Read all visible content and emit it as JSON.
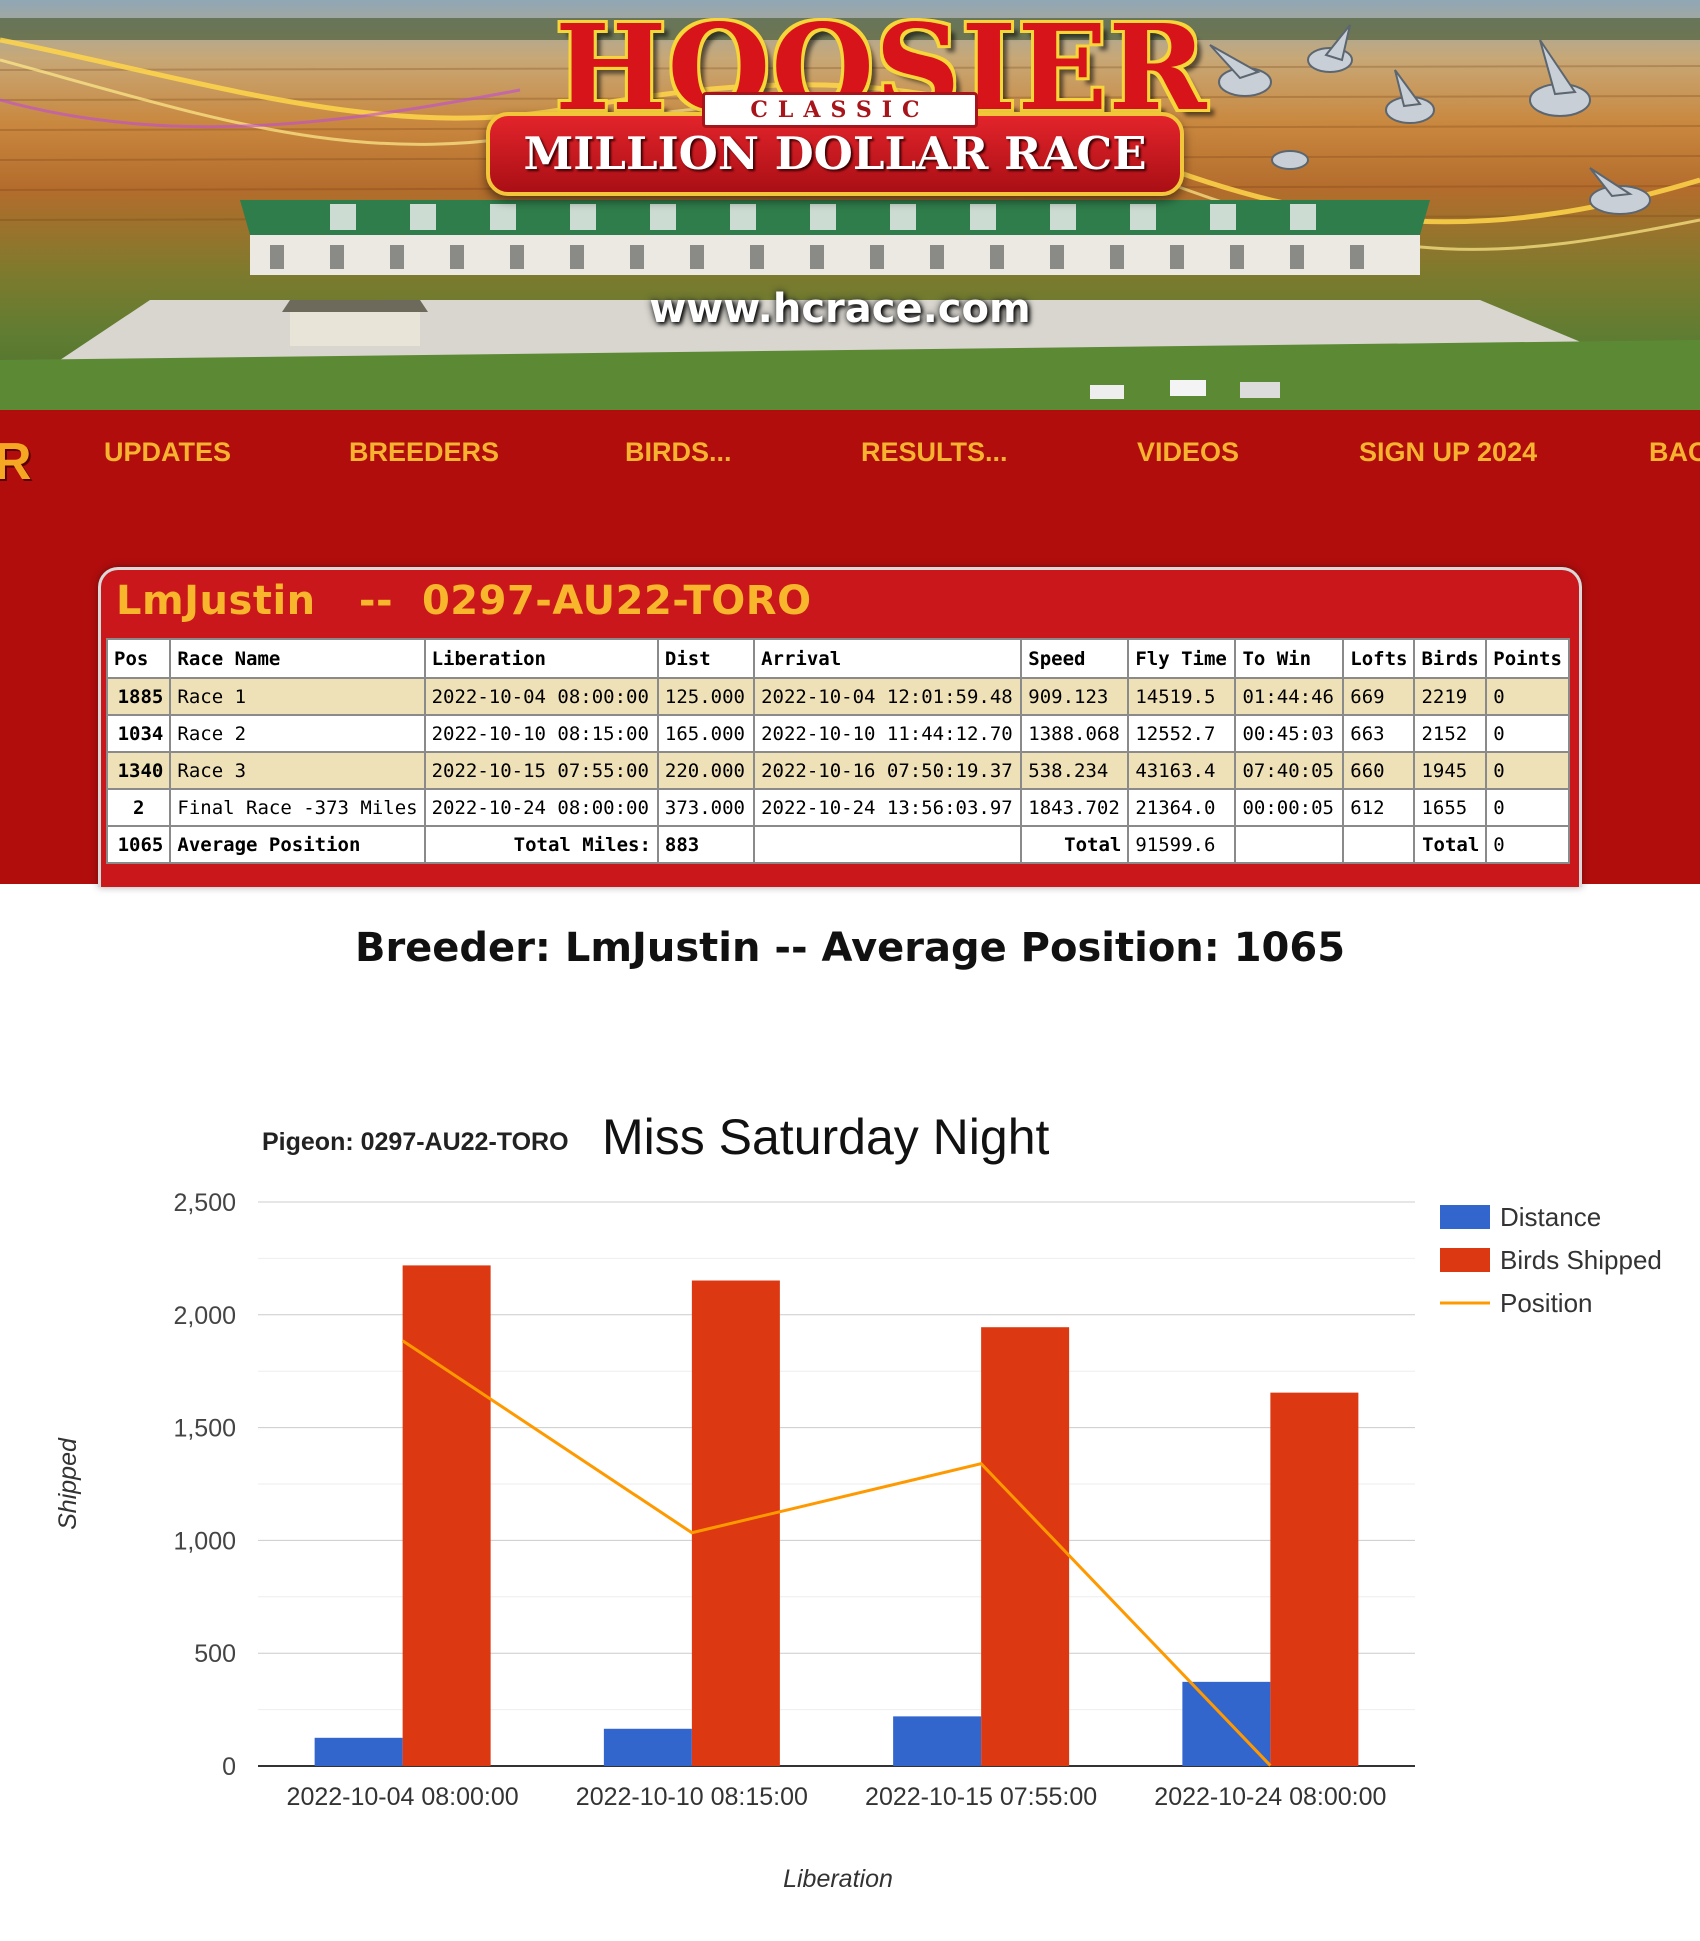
{
  "banner": {
    "logo_word": "HOOSIER",
    "logo_classic": "CLASSIC",
    "logo_tagline": "MILLION DOLLAR RACE",
    "url": "www.hcrace.com"
  },
  "nav": {
    "cut_left": "R",
    "items": [
      "UPDATES",
      "BREEDERS",
      "BIRDS...",
      "RESULTS...",
      "VIDEOS",
      "SIGN UP 2024",
      "BAC"
    ]
  },
  "results": {
    "title": "LmJustin   --  0297-AU22-TORO",
    "columns": [
      "Pos",
      "Race Name",
      "Liberation",
      "Dist",
      "Arrival",
      "Speed",
      "Fly Time",
      "To Win",
      "Lofts",
      "Birds",
      "Points"
    ],
    "rows": [
      [
        "1885",
        "Race 1",
        "2022-10-04 08:00:00",
        "125.000",
        "2022-10-04 12:01:59.48",
        "909.123",
        "14519.5",
        "01:44:46",
        "669",
        "2219",
        "0"
      ],
      [
        "1034",
        "Race 2",
        "2022-10-10 08:15:00",
        "165.000",
        "2022-10-10 11:44:12.70",
        "1388.068",
        "12552.7",
        "00:45:03",
        "663",
        "2152",
        "0"
      ],
      [
        "1340",
        "Race 3",
        "2022-10-15 07:55:00",
        "220.000",
        "2022-10-16 07:50:19.37",
        "538.234",
        "43163.4",
        "07:40:05",
        "660",
        "1945",
        "0"
      ],
      [
        "2",
        "Final Race -373 Miles",
        "2022-10-24 08:00:00",
        "373.000",
        "2022-10-24 13:56:03.97",
        "1843.702",
        "21364.0",
        "00:00:05",
        "612",
        "1655",
        "0"
      ]
    ],
    "summary": {
      "pos": "1065",
      "label": "Average Position",
      "miles_label": "Total Miles:",
      "miles": "883",
      "arrival": "",
      "total_label": "Total",
      "fly_time": "91599.6",
      "to_win": "",
      "lofts": "",
      "birds_label": "Total",
      "points": "0"
    }
  },
  "breeder_heading": "Breeder: LmJustin -- Average Position: 1065",
  "chart_data": {
    "type": "bar",
    "title": "Pigeon: 0297-AU22-TORO",
    "subtitle": "Miss Saturday Night",
    "xlabel": "Liberation",
    "ylabel": "Shipped",
    "categories": [
      "2022-10-04 08:00:00",
      "2022-10-10 08:15:00",
      "2022-10-15 07:55:00",
      "2022-10-24 08:00:00"
    ],
    "ylim": [
      0,
      2500
    ],
    "yticks": [
      0,
      500,
      1000,
      1500,
      2000,
      2500
    ],
    "ytick_labels": [
      "0",
      "500",
      "1,000",
      "1,500",
      "2,000",
      "2,500"
    ],
    "grid": true,
    "legend_position": "right",
    "series": [
      {
        "name": "Distance",
        "kind": "bar",
        "color": "#3366cc",
        "values": [
          125,
          165,
          220,
          373
        ]
      },
      {
        "name": "Birds Shipped",
        "kind": "bar",
        "color": "#dc3912",
        "values": [
          2219,
          2152,
          1945,
          1655
        ]
      },
      {
        "name": "Position",
        "kind": "line",
        "color": "#ff9900",
        "values": [
          1885,
          1034,
          1340,
          2
        ]
      }
    ]
  }
}
